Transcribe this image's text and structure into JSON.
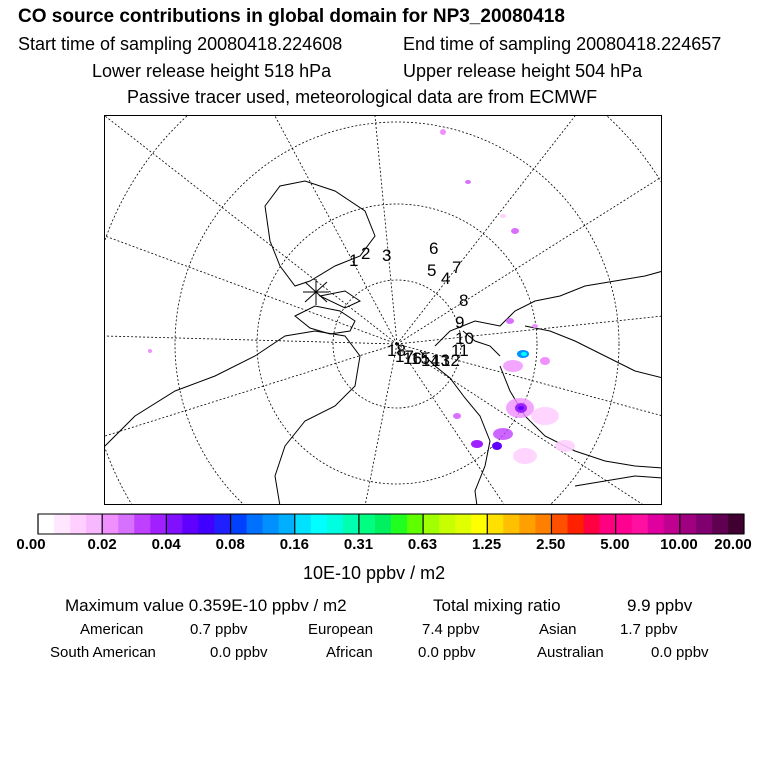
{
  "header": {
    "title": "CO  source contributions in global domain for NP3_20080418",
    "start_time": "Start time of sampling 20080418.224608",
    "end_time": "End time of sampling 20080418.224657",
    "lower_release": "Lower release height  518 hPa",
    "upper_release": "Upper release height  504 hPa",
    "tracer_note": "Passive tracer used, meteorological data are from ECMWF"
  },
  "chart_data": {
    "type": "heatmap",
    "projection": "north polar stereographic",
    "colorbar": {
      "tick_labels": [
        "0.00",
        "0.02",
        "0.04",
        "0.08",
        "0.16",
        "0.31",
        "0.63",
        "1.25",
        "2.50",
        "5.00",
        "10.00",
        "20.00"
      ],
      "colors": [
        "#ffffff",
        "#ffe8ff",
        "#ffd0ff",
        "#f8b8ff",
        "#f090ff",
        "#d870ff",
        "#c040ff",
        "#a020ff",
        "#8010ff",
        "#6000ff",
        "#4000ff",
        "#2020ff",
        "#0040ff",
        "#0070ff",
        "#0090ff",
        "#00b0ff",
        "#00e0ff",
        "#00ffff",
        "#00ffe0",
        "#00ffb0",
        "#00ff80",
        "#00f060",
        "#20ff20",
        "#60ff00",
        "#a0ff00",
        "#c8ff00",
        "#e0ff00",
        "#ffff00",
        "#ffe000",
        "#ffc000",
        "#ffa000",
        "#ff8000",
        "#ff5000",
        "#ff2000",
        "#ff0040",
        "#ff0080",
        "#ff0090",
        "#ff10a0",
        "#e000a0",
        "#c00090",
        "#a00080",
        "#800070",
        "#600050",
        "#400030"
      ],
      "unit_label": "10E-10 ppbv / m2"
    },
    "track_labels": [
      "1",
      "2",
      "3",
      "4",
      "5",
      "6",
      "7",
      "8",
      "9",
      "10",
      "11",
      "12",
      "13",
      "14",
      "15",
      "16",
      "17",
      "18"
    ]
  },
  "stats": {
    "max_value": "Maximum value  0.359E-10 ppbv / m2",
    "total_label": "Total mixing ratio",
    "total_value": "9.9 ppbv",
    "american_label": "American",
    "american_value": "0.7 ppbv",
    "european_label": "European",
    "european_value": "7.4 ppbv",
    "asian_label": "Asian",
    "asian_value": "1.7 ppbv",
    "south_american_label": "South American",
    "south_american_value": "0.0 ppbv",
    "african_label": "African",
    "african_value": "0.0 ppbv",
    "australian_label": "Australian",
    "australian_value": "0.0 ppbv"
  }
}
